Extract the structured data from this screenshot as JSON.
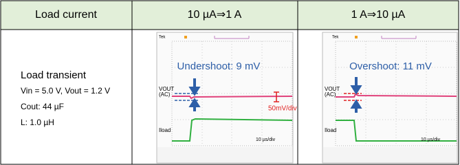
{
  "table": {
    "header": [
      "Load current",
      "10 µA⇒1 A",
      "1 A⇒10 µA"
    ],
    "rows": [
      {
        "label": "Load transient",
        "conditions": [
          "Vin = 5.0 V, Vout = 1.2 V",
          "Cout: 44 µF",
          "L: 1.0 µH"
        ]
      }
    ]
  },
  "scopes": [
    {
      "brand": "Tek",
      "annotation": "Undershoot: 9 mV",
      "vout_label": [
        "VOUT",
        "(AC)"
      ],
      "iload_label": "Iload",
      "scale": "50mV/div",
      "timebase": "10 µs/div"
    },
    {
      "brand": "Tek",
      "annotation": "Overshoot: 11 mV",
      "vout_label": [
        "VOUT",
        "(AC)"
      ],
      "iload_label": "Iload",
      "timebase": "10 µs/div"
    }
  ]
}
